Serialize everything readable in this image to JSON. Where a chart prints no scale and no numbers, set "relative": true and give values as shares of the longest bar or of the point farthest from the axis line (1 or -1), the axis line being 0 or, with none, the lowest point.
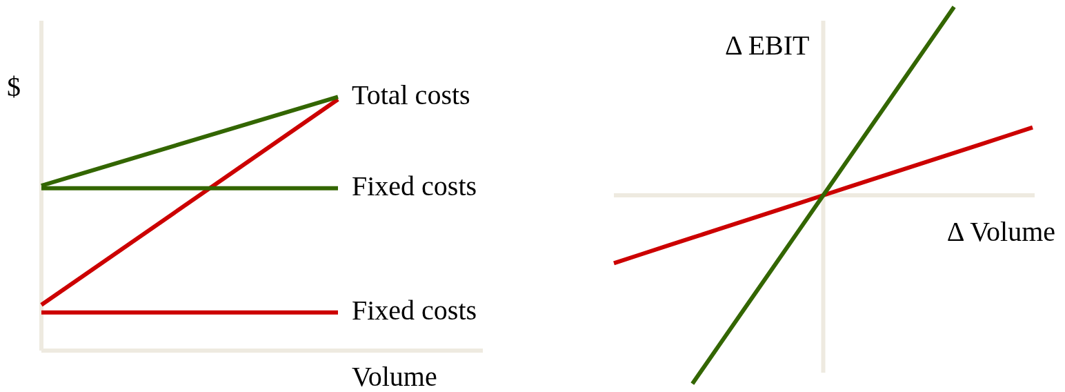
{
  "chart_data": [
    {
      "type": "line",
      "relative": true,
      "ylabel": "$",
      "xlabel": "Volume",
      "categories": [
        null,
        null
      ],
      "series": [
        {
          "name": "Total costs",
          "color": "#336600",
          "values": [
            0.65,
            1
          ]
        },
        {
          "name": "Fixed costs",
          "color": "#336600",
          "values": [
            0.64,
            0.64
          ]
        },
        {
          "color": "#cc0000",
          "values": [
            0.18,
            0.99
          ]
        },
        {
          "name": "Fixed costs",
          "color": "#cc0000",
          "values": [
            0.15,
            0.15
          ]
        }
      ]
    },
    {
      "type": "line",
      "relative": true,
      "ylabel": "Δ EBIT",
      "xlabel": "Δ Volume",
      "categories": [
        null,
        null,
        null,
        null,
        null,
        null,
        null,
        null,
        null,
        null,
        null,
        null,
        null,
        null,
        null,
        null,
        null
      ],
      "series": [
        {
          "color": "#336600",
          "values": [
            null,
            null,
            null,
            -1,
            -0.8,
            -0.6,
            -0.4,
            -0.2,
            0,
            0.2,
            0.4,
            0.6,
            0.8,
            1,
            null,
            null,
            null
          ]
        },
        {
          "color": "#cc0000",
          "values": [
            -0.36,
            -0.315,
            -0.27,
            -0.225,
            -0.18,
            -0.135,
            -0.09,
            -0.045,
            0,
            0.045,
            0.09,
            0.135,
            0.18,
            0.225,
            0.27,
            0.315,
            0.36
          ]
        }
      ]
    }
  ]
}
